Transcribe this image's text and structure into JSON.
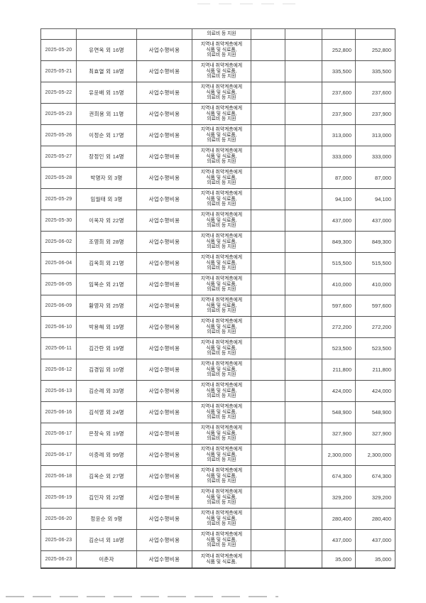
{
  "document": {
    "kind": "scanned-expense-ledger",
    "language": "ko",
    "colors": {
      "paper": "#ffffff",
      "ink": "#303030",
      "border": "#4f4f4f"
    }
  },
  "table": {
    "column_names": [
      "date",
      "name",
      "category",
      "description",
      "empty1",
      "empty2",
      "amount1",
      "amount2"
    ],
    "rows": [
      {
        "partial": true,
        "date": "",
        "name": "",
        "category": "",
        "description": "의료비 등 지원",
        "amount1": "",
        "amount2": ""
      },
      {
        "date": "2025-05-20",
        "name": "유연옥 외 16명",
        "category": "사업수행비용",
        "description": "지역내 취약계층에게\n식품 및 식료품,\n의료비 등 지원",
        "amount1": "252,800",
        "amount2": "252,800"
      },
      {
        "date": "2025-05-21",
        "name": "최효열 외 18명",
        "category": "사업수행비용",
        "description": "지역내 취약계층에게\n식품 및 식료품,\n의료비 등 지원",
        "amount1": "335,500",
        "amount2": "335,500"
      },
      {
        "date": "2025-05-22",
        "name": "유윤배 외 15명",
        "category": "사업수행비용",
        "description": "지역내 취약계층에게\n식품 및 식료품,\n의료비 등 지원",
        "amount1": "237,600",
        "amount2": "237,600"
      },
      {
        "date": "2025-05-23",
        "name": "권희용 외 11명",
        "category": "사업수행비용",
        "description": "지역내 취약계층에게\n식품 및 식료품,\n의료비 등 지원",
        "amount1": "237,900",
        "amount2": "237,900"
      },
      {
        "date": "2025-05-26",
        "name": "이정순 외 17명",
        "category": "사업수행비용",
        "description": "지역내 취약계층에게\n식품 및 식료품,\n의료비 등 지원",
        "amount1": "313,000",
        "amount2": "313,000"
      },
      {
        "date": "2025-05-27",
        "name": "장정인 외 14명",
        "category": "사업수행비용",
        "description": "지역내 취약계층에게\n식품 및 식료품,\n의료비 등 지원",
        "amount1": "333,000",
        "amount2": "333,000"
      },
      {
        "date": "2025-05-28",
        "name": "박명자 외 3명",
        "category": "사업수행비용",
        "description": "지역내 취약계층에게\n식품 및 식료품,\n의료비 등 지원",
        "amount1": "87,000",
        "amount2": "87,000"
      },
      {
        "date": "2025-05-29",
        "name": "임월태 외 3명",
        "category": "사업수행비용",
        "description": "지역내 취약계층에게\n식품 및 식료품,\n의료비 등 지원",
        "amount1": "94,100",
        "amount2": "94,100"
      },
      {
        "date": "2025-05-30",
        "name": "이옥자 외 22명",
        "category": "사업수행비용",
        "description": "지역내 취약계층에게\n식품 및 식료품,\n의료비 등 지원",
        "amount1": "437,000",
        "amount2": "437,000"
      },
      {
        "date": "2025-06-02",
        "name": "조영희 외 28명",
        "category": "사업수행비용",
        "description": "지역내 취약계층에게\n식품 및 식료품,\n의료비 등 지원",
        "amount1": "849,300",
        "amount2": "849,300"
      },
      {
        "date": "2025-06-04",
        "name": "김옥희 외 21명",
        "category": "사업수행비용",
        "description": "지역내 취약계층에게\n식품 및 식료품,\n의료비 등 지원",
        "amount1": "515,500",
        "amount2": "515,500"
      },
      {
        "date": "2025-06-05",
        "name": "임복순 외 21명",
        "category": "사업수행비용",
        "description": "지역내 취약계층에게\n식품 및 식료품,\n의료비 등 지원",
        "amount1": "410,000",
        "amount2": "410,000"
      },
      {
        "date": "2025-06-09",
        "name": "황영자 외 25명",
        "category": "사업수행비용",
        "description": "지역내 취약계층에게\n식품 및 식료품,\n의료비 등 지원",
        "amount1": "597,600",
        "amount2": "597,600"
      },
      {
        "date": "2025-06-10",
        "name": "박용해 외 19명",
        "category": "사업수행비용",
        "description": "지역내 취약계층에게\n식품 및 식료품,\n의료비 등 지원",
        "amount1": "272,200",
        "amount2": "272,200"
      },
      {
        "date": "2025-06-11",
        "name": "김간란 외 19명",
        "category": "사업수행비용",
        "description": "지역내 취약계층에게\n식품 및 식료품,\n의료비 등 지원",
        "amount1": "523,500",
        "amount2": "523,500"
      },
      {
        "date": "2025-06-12",
        "name": "김경임 외 10명",
        "category": "사업수행비용",
        "description": "지역내 취약계층에게\n식품 및 식료품,\n의료비 등 지원",
        "amount1": "211,800",
        "amount2": "211,800"
      },
      {
        "date": "2025-06-13",
        "name": "김순례 외 33명",
        "category": "사업수행비용",
        "description": "지역내 취약계층에게\n식품 및 식료품,\n의료비 등 지원",
        "amount1": "424,000",
        "amount2": "424,000"
      },
      {
        "date": "2025-06-16",
        "name": "김석영 외 24명",
        "category": "사업수행비용",
        "description": "지역내 취약계층에게\n식품 및 식료품,\n의료비 등 지원",
        "amount1": "548,900",
        "amount2": "548,900"
      },
      {
        "date": "2025-06-17",
        "name": "은창숙 외 19명",
        "category": "사업수행비용",
        "description": "지역내 취약계층에게\n식품 및 식료품,\n의료비 등 지원",
        "amount1": "327,900",
        "amount2": "327,900"
      },
      {
        "date": "2025-06-17",
        "name": "이증례 외 99명",
        "category": "사업수행비용",
        "description": "지역내 취약계층에게\n식품 및 식료품,\n의료비 등 지원",
        "amount1": "2,300,000",
        "amount2": "2,300,000"
      },
      {
        "date": "2025-06-18",
        "name": "김옥순 외 27명",
        "category": "사업수행비용",
        "description": "지역내 취약계층에게\n식품 및 식료품,\n의료비 등 지원",
        "amount1": "674,300",
        "amount2": "674,300"
      },
      {
        "date": "2025-06-19",
        "name": "김인자 외 22명",
        "category": "사업수행비용",
        "description": "지역내 취약계층에게\n식품 및 식료품,\n의료비 등 지원",
        "amount1": "329,200",
        "amount2": "329,200"
      },
      {
        "date": "2025-06-20",
        "name": "정윤순 외 9명",
        "category": "사업수행비용",
        "description": "지역내 취약계층에게\n식품 및 식료품,\n의료비 등 지원",
        "amount1": "280,400",
        "amount2": "280,400"
      },
      {
        "date": "2025-06-23",
        "name": "김순녀 외 18명",
        "category": "사업수행비용",
        "description": "지역내 취약계층에게\n식품 및 식료품,\n의료비 등 지원",
        "amount1": "437,000",
        "amount2": "437,000"
      },
      {
        "short": true,
        "date": "2025-06-23",
        "name": "이춘자",
        "category": "사업수행비용",
        "description": "지역내 취약계층에게\n식품 및 식료품,",
        "amount1": "35,000",
        "amount2": "35,000"
      }
    ]
  }
}
